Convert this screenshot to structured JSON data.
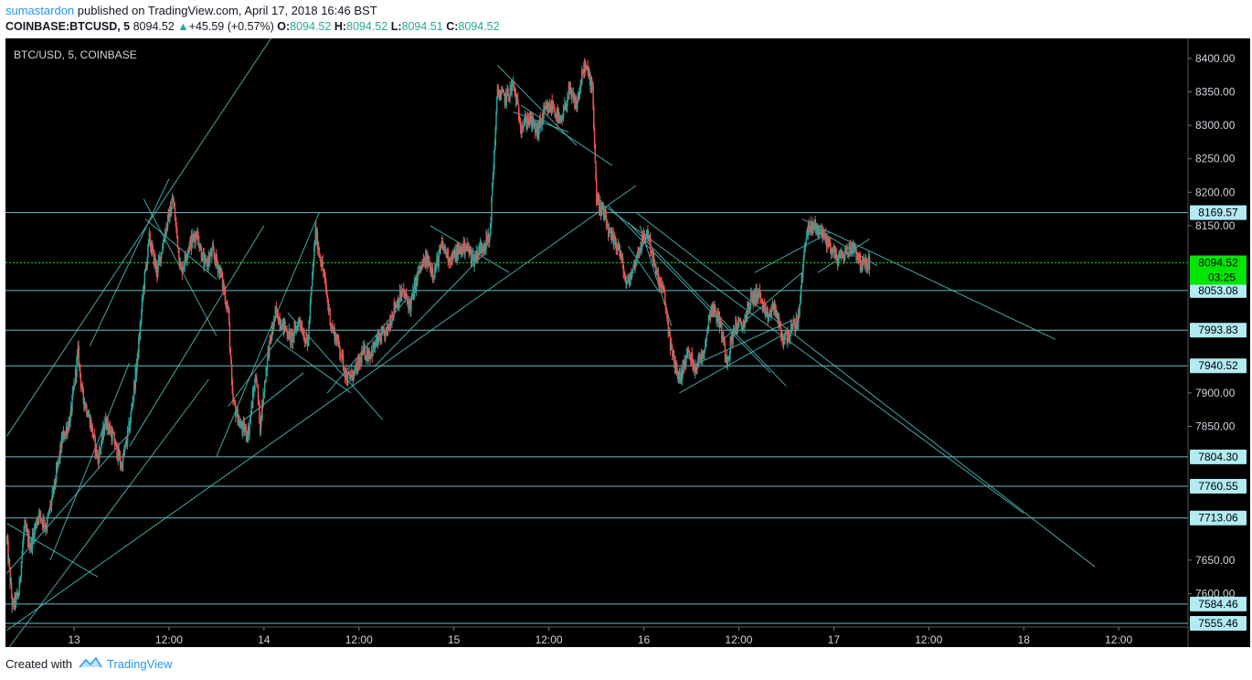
{
  "header": {
    "author": "sumastardon",
    "published_text": " published on TradingView.com, April 17, 2018 16:46 BST",
    "symbol": "COINBASE:BTCUSD, 5",
    "last": "8094.52",
    "change": "+45.59 (+0.57%)",
    "o_label": "O:",
    "o_value": "8094.52",
    "h_label": "H:",
    "h_value": "8094.52",
    "l_label": "L:",
    "l_value": "8094.51",
    "c_label": "C:",
    "c_value": "8094.52"
  },
  "footer": {
    "created_with": "Created with",
    "brand": "TradingView"
  },
  "colors": {
    "background": "#000000",
    "up": "#26a69a",
    "down": "#ef5350",
    "trendline": "#4fc3c3",
    "level_line": "#80deea",
    "price_line": "#00e600"
  },
  "chart_data": {
    "type": "candlestick",
    "title": "BTC/USD, 5, COINBASE",
    "ylim": [
      7520,
      8430
    ],
    "y_ticks": [
      {
        "value": 8400,
        "label": "8400.00"
      },
      {
        "value": 8350,
        "label": "8350.00"
      },
      {
        "value": 8300,
        "label": "8300.00"
      },
      {
        "value": 8250,
        "label": "8250.00"
      },
      {
        "value": 8200,
        "label": "8200.00"
      },
      {
        "value": 8150,
        "label": "8150.00"
      },
      {
        "value": 7900,
        "label": "7900.00"
      },
      {
        "value": 7850,
        "label": "7850.00"
      },
      {
        "value": 7650,
        "label": "7650.00"
      },
      {
        "value": 7600,
        "label": "7600.00"
      }
    ],
    "x_ticks": [
      {
        "t": 0,
        "label": "13"
      },
      {
        "t": 12,
        "label": "12:00"
      },
      {
        "t": 24,
        "label": "14"
      },
      {
        "t": 36,
        "label": "12:00"
      },
      {
        "t": 48,
        "label": "15"
      },
      {
        "t": 60,
        "label": "12:00"
      },
      {
        "t": 72,
        "label": "16"
      },
      {
        "t": 84,
        "label": "12:00"
      },
      {
        "t": 96,
        "label": "17"
      },
      {
        "t": 108,
        "label": "12:00"
      },
      {
        "t": 120,
        "label": "18"
      },
      {
        "t": 132,
        "label": "12:00"
      }
    ],
    "horizontal_levels": [
      {
        "value": 8169.57,
        "label": "8169.57"
      },
      {
        "value": 8053.08,
        "label": "8053.08"
      },
      {
        "value": 7993.83,
        "label": "7993.83"
      },
      {
        "value": 7940.52,
        "label": "7940.52"
      },
      {
        "value": 7804.3,
        "label": "7804.30"
      },
      {
        "value": 7760.55,
        "label": "7760.55"
      },
      {
        "value": 7713.06,
        "label": "7713.06"
      },
      {
        "value": 7584.46,
        "label": "7584.46"
      },
      {
        "value": 7555.46,
        "label": "7555.46"
      }
    ],
    "current_price": {
      "value": 8094.52,
      "label": "8094.52",
      "countdown": "03:25"
    },
    "price_path": [
      [
        -8.5,
        7680
      ],
      [
        -7.8,
        7580
      ],
      [
        -7,
        7600
      ],
      [
        -6.3,
        7700
      ],
      [
        -5.5,
        7670
      ],
      [
        -4.5,
        7720
      ],
      [
        -3.5,
        7700
      ],
      [
        -2.5,
        7760
      ],
      [
        -1.5,
        7830
      ],
      [
        -0.5,
        7860
      ],
      [
        0.5,
        7960
      ],
      [
        1,
        7900
      ],
      [
        2,
        7860
      ],
      [
        3,
        7800
      ],
      [
        4,
        7860
      ],
      [
        5,
        7830
      ],
      [
        6,
        7790
      ],
      [
        7,
        7850
      ],
      [
        8,
        7950
      ],
      [
        8.8,
        8060
      ],
      [
        9.5,
        8130
      ],
      [
        10.5,
        8080
      ],
      [
        11.5,
        8140
      ],
      [
        12.5,
        8190
      ],
      [
        13.5,
        8080
      ],
      [
        14.5,
        8120
      ],
      [
        15.5,
        8140
      ],
      [
        16.5,
        8090
      ],
      [
        17.5,
        8110
      ],
      [
        18.5,
        8080
      ],
      [
        19.5,
        8020
      ],
      [
        20,
        7890
      ],
      [
        21,
        7850
      ],
      [
        22,
        7840
      ],
      [
        23,
        7930
      ],
      [
        23.5,
        7850
      ],
      [
        24.5,
        7960
      ],
      [
        25.5,
        8020
      ],
      [
        26.5,
        8000
      ],
      [
        27.5,
        7980
      ],
      [
        28.5,
        8010
      ],
      [
        29.5,
        7970
      ],
      [
        30.5,
        8140
      ],
      [
        31.5,
        8080
      ],
      [
        32.5,
        8000
      ],
      [
        33.5,
        7970
      ],
      [
        34.5,
        7920
      ],
      [
        35.5,
        7930
      ],
      [
        36.5,
        7960
      ],
      [
        37.5,
        7960
      ],
      [
        38.5,
        7980
      ],
      [
        39.5,
        7990
      ],
      [
        40.5,
        8030
      ],
      [
        41.5,
        8050
      ],
      [
        42.5,
        8030
      ],
      [
        43.5,
        8080
      ],
      [
        44.5,
        8100
      ],
      [
        45.5,
        8080
      ],
      [
        46.5,
        8120
      ],
      [
        47.5,
        8100
      ],
      [
        48.5,
        8110
      ],
      [
        49.5,
        8120
      ],
      [
        50.5,
        8100
      ],
      [
        51.5,
        8120
      ],
      [
        52.5,
        8130
      ],
      [
        53.5,
        8350
      ],
      [
        54.5,
        8340
      ],
      [
        55.5,
        8360
      ],
      [
        56.5,
        8300
      ],
      [
        57.5,
        8310
      ],
      [
        58.5,
        8290
      ],
      [
        59.5,
        8320
      ],
      [
        60.5,
        8330
      ],
      [
        61.5,
        8300
      ],
      [
        62.5,
        8350
      ],
      [
        63.5,
        8330
      ],
      [
        64.5,
        8390
      ],
      [
        65.5,
        8360
      ],
      [
        66,
        8190
      ],
      [
        66.8,
        8170
      ],
      [
        67.8,
        8130
      ],
      [
        68.8,
        8120
      ],
      [
        69.8,
        8060
      ],
      [
        70.5,
        8080
      ],
      [
        71.5,
        8120
      ],
      [
        72.5,
        8140
      ],
      [
        73.5,
        8080
      ],
      [
        74.5,
        8050
      ],
      [
        75.5,
        7960
      ],
      [
        76.5,
        7920
      ],
      [
        77.5,
        7960
      ],
      [
        78.5,
        7940
      ],
      [
        79.5,
        7960
      ],
      [
        80.5,
        8030
      ],
      [
        81.5,
        8010
      ],
      [
        82.5,
        7950
      ],
      [
        83.5,
        8000
      ],
      [
        84.5,
        8000
      ],
      [
        85.5,
        8040
      ],
      [
        86.5,
        8050
      ],
      [
        87.5,
        8010
      ],
      [
        88.5,
        8030
      ],
      [
        89.5,
        7980
      ],
      [
        90.5,
        7990
      ],
      [
        91.5,
        8010
      ],
      [
        92.5,
        8140
      ],
      [
        93.5,
        8150
      ],
      [
        94.5,
        8140
      ],
      [
        95.5,
        8120
      ],
      [
        96.5,
        8100
      ],
      [
        97.5,
        8110
      ],
      [
        98.5,
        8120
      ],
      [
        99.5,
        8090
      ],
      [
        100.5,
        8095
      ]
    ],
    "trendlines": [
      [
        -8.5,
        7835,
        26,
        8450
      ],
      [
        -8.5,
        7545,
        71,
        8210
      ],
      [
        -8.5,
        7515,
        17,
        7920
      ],
      [
        -8.5,
        7630,
        7,
        7840
      ],
      [
        -8.5,
        7705,
        3,
        7625
      ],
      [
        -3,
        7650,
        7,
        7945
      ],
      [
        2,
        7970,
        12,
        8220
      ],
      [
        7,
        7820,
        24,
        8150
      ],
      [
        9,
        8160,
        18,
        8070
      ],
      [
        8.8,
        8190,
        18,
        7985
      ],
      [
        18,
        7805,
        31,
        8170
      ],
      [
        21,
        7855,
        29,
        7930
      ],
      [
        19.5,
        7880,
        27,
        8000
      ],
      [
        25.5,
        7980,
        35,
        7900
      ],
      [
        27,
        8020,
        39,
        7860
      ],
      [
        32,
        7900,
        42,
        8040
      ],
      [
        38,
        7940,
        52,
        8110
      ],
      [
        45,
        8150,
        55,
        8080
      ],
      [
        53.5,
        8390,
        63.5,
        8270
      ],
      [
        55.5,
        8320,
        62.5,
        8290
      ],
      [
        56.5,
        8330,
        68,
        8240
      ],
      [
        67.5,
        8180,
        88,
        7930
      ],
      [
        70,
        8155,
        90,
        7910
      ],
      [
        70,
        8120,
        74,
        8050
      ],
      [
        71.5,
        8150,
        75.5,
        8000
      ],
      [
        76.5,
        7900,
        90,
        7990
      ],
      [
        78,
        7940,
        91,
        8010
      ],
      [
        82,
        7980,
        92,
        8080
      ],
      [
        86,
        8080,
        95.5,
        8140
      ],
      [
        92,
        8160,
        124,
        7980
      ],
      [
        94,
        8080,
        100.5,
        8130
      ],
      [
        94.5,
        8140,
        101.5,
        8090
      ],
      [
        67,
        8180,
        120,
        7720
      ],
      [
        71,
        8170,
        129,
        7640
      ]
    ]
  }
}
